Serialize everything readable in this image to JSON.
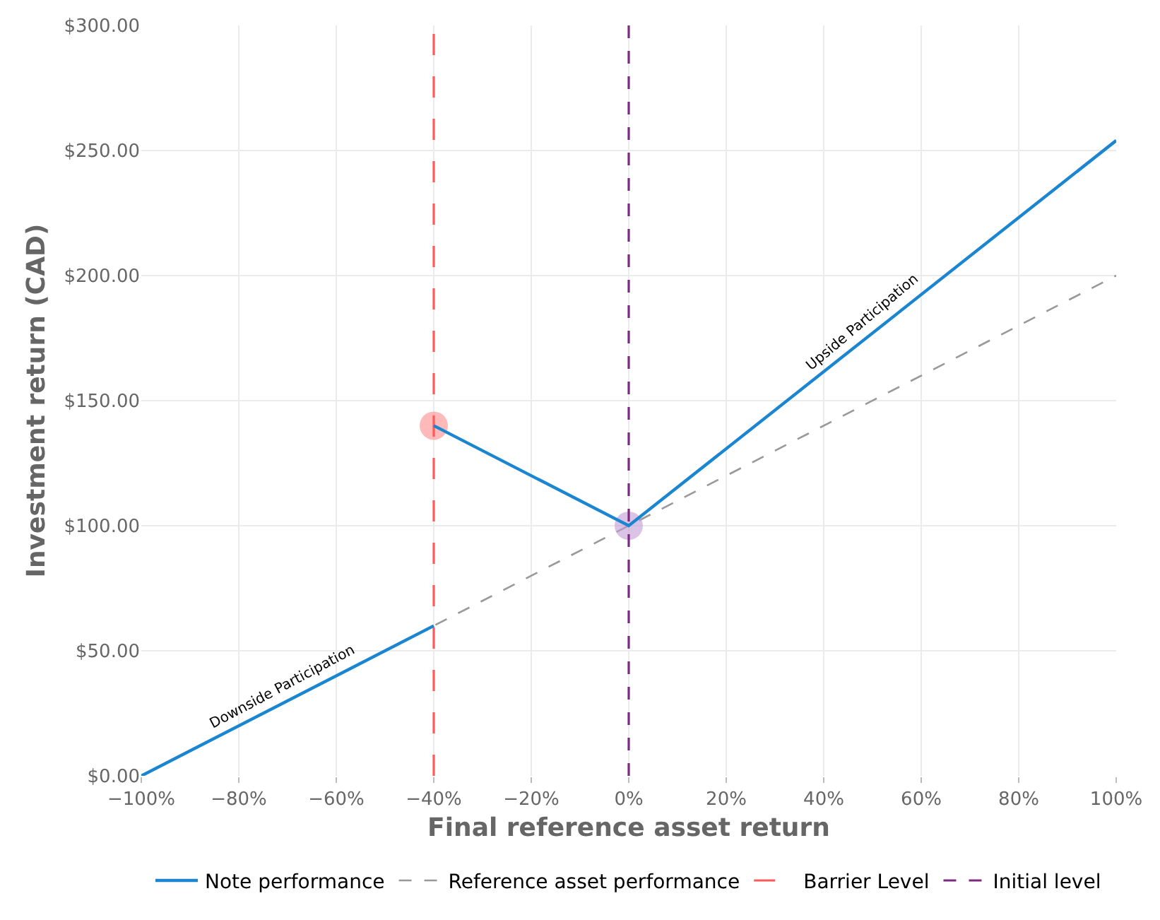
{
  "chart_data": {
    "type": "line",
    "xlabel": "Final reference asset return",
    "ylabel": "Investment return (CAD)",
    "xlim": [
      -100,
      100
    ],
    "ylim": [
      0,
      300
    ],
    "xticks": [
      {
        "value": -100,
        "label": "−100%"
      },
      {
        "value": -80,
        "label": "−80%"
      },
      {
        "value": -60,
        "label": "−60%"
      },
      {
        "value": -40,
        "label": "−40%"
      },
      {
        "value": -20,
        "label": "−20%"
      },
      {
        "value": 0,
        "label": "0%"
      },
      {
        "value": 20,
        "label": "20%"
      },
      {
        "value": 40,
        "label": "40%"
      },
      {
        "value": 60,
        "label": "60%"
      },
      {
        "value": 80,
        "label": "80%"
      },
      {
        "value": 100,
        "label": "100%"
      }
    ],
    "yticks": [
      {
        "value": 0,
        "label": "$0.00"
      },
      {
        "value": 50,
        "label": "$50.00"
      },
      {
        "value": 100,
        "label": "$100.00"
      },
      {
        "value": 150,
        "label": "$150.00"
      },
      {
        "value": 200,
        "label": "$200.00"
      },
      {
        "value": 250,
        "label": "$250.00"
      },
      {
        "value": 300,
        "label": "$300.00"
      }
    ],
    "grid": true,
    "legend": "bottom",
    "marker": "none",
    "series": [
      {
        "name": "Note performance",
        "color": "#1a85d0",
        "line_style": "solid",
        "x": [
          -100,
          -40
        ],
        "values": [
          0,
          60
        ]
      },
      {
        "color": "#1a85d0",
        "line_style": "solid",
        "x": [
          -40,
          0,
          100
        ],
        "values": [
          140,
          100,
          254
        ]
      },
      {
        "name": "Reference asset performance",
        "color": "#999999",
        "line_style": "dashed",
        "x": [
          -100,
          100
        ],
        "values": [
          0,
          200
        ]
      },
      {
        "type": "scatter",
        "marker": "circle",
        "color": "#ff8a8a",
        "x": [
          -40
        ],
        "values": [
          140
        ]
      },
      {
        "type": "scatter",
        "marker": "circle",
        "color": "#c39bd3",
        "x": [
          0
        ],
        "values": [
          100
        ]
      }
    ],
    "ref_lines": [
      {
        "axis": "x",
        "value": -40,
        "label": "Barrier Level",
        "color": "#ff5a5a",
        "line_style": "dashed"
      },
      {
        "axis": "x",
        "value": 0,
        "label": "Initial level",
        "color": "#7b2a80",
        "line_style": "dashed"
      }
    ],
    "annotations": [
      "Downside Participation",
      "Upside Participation"
    ]
  }
}
